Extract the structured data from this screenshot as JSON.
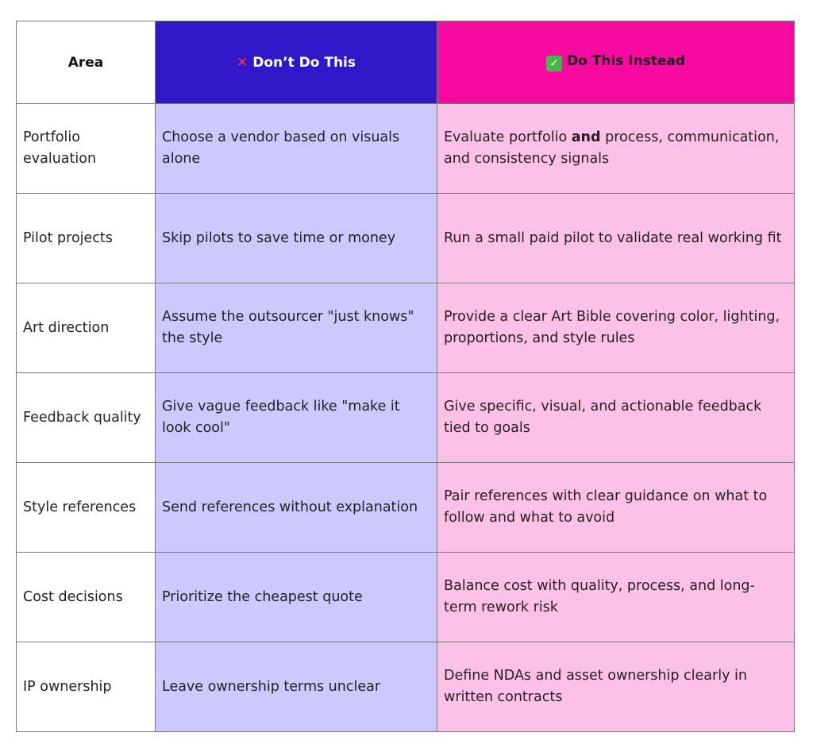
{
  "table": {
    "headers": {
      "area": "Area",
      "dont_icon": "cross-mark-icon",
      "dont": "Don’t Do This",
      "do_icon": "check-mark-icon",
      "do": "Do This Instead"
    },
    "rows": [
      {
        "area": "Portfolio evaluation",
        "dont": "Choose a vendor based on visuals alone",
        "do_pre": "Evaluate portfolio ",
        "do_bold": "and",
        "do_post": " process, communication, and consistency signals"
      },
      {
        "area": "Pilot projects",
        "dont": "Skip pilots to save time or money",
        "do": "Run a small paid pilot to validate real working fit"
      },
      {
        "area": "Art direction",
        "dont": "Assume the outsourcer \"just knows\" the style",
        "do": "Provide a clear Art Bible covering color, lighting, proportions, and style rules"
      },
      {
        "area": "Feedback quality",
        "dont": "Give vague feedback like \"make it look cool\"",
        "do": "Give specific, visual, and actionable feedback tied to goals"
      },
      {
        "area": "Style references",
        "dont": "Send references without explanation",
        "do": "Pair references with clear guidance on what to follow and what to avoid"
      },
      {
        "area": "Cost decisions",
        "dont": "Prioritize the cheapest quote",
        "do": "Balance cost with quality, process, and long-term rework risk"
      },
      {
        "area": "IP ownership",
        "dont": "Leave ownership terms unclear",
        "do": "Define NDAs and asset ownership clearly in written contracts"
      }
    ],
    "colors": {
      "dont_header": "#3018c8",
      "do_header": "#f70aa0",
      "dont_cell": "#cdc8fd",
      "do_cell": "#fdc0e6",
      "cross": "#ff3b3b",
      "check": "#45b84a"
    }
  }
}
